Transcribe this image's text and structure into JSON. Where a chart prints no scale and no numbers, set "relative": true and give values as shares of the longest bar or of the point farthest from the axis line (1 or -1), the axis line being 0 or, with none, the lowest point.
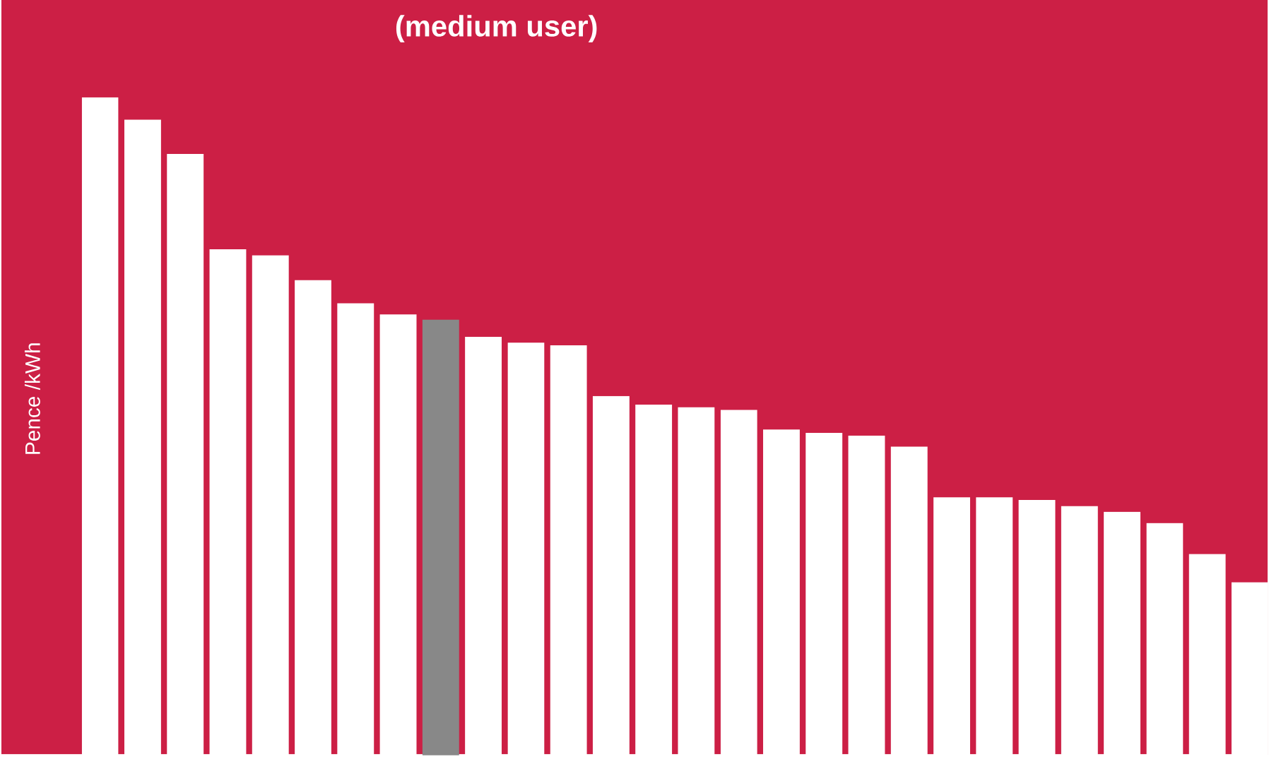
{
  "chart_data": {
    "type": "bar",
    "title": "(medium user)",
    "ylabel": "Pence /kWh",
    "relative": true,
    "categories": [
      null,
      null,
      null,
      null,
      null,
      null,
      null,
      null,
      null,
      null,
      null,
      null,
      null,
      null,
      null,
      null,
      null,
      null,
      null,
      null,
      null,
      null,
      null,
      null,
      null,
      null,
      null,
      null
    ],
    "values": [
      1,
      0.966,
      0.914,
      0.769,
      0.76,
      0.722,
      0.687,
      0.67,
      0.662,
      0.636,
      0.627,
      0.623,
      0.546,
      0.533,
      0.529,
      0.525,
      0.495,
      0.49,
      0.486,
      0.469,
      0.392,
      0.392,
      0.388,
      0.379,
      0.37,
      0.353,
      0.306,
      0.263
    ],
    "colors": [
      "#ffffff",
      "#ffffff",
      "#ffffff",
      "#ffffff",
      "#ffffff",
      "#ffffff",
      "#ffffff",
      "#ffffff",
      "#888888",
      "#ffffff",
      "#ffffff",
      "#ffffff",
      "#ffffff",
      "#ffffff",
      "#ffffff",
      "#ffffff",
      "#ffffff",
      "#ffffff",
      "#ffffff",
      "#ffffff",
      "#ffffff",
      "#ffffff",
      "#ffffff",
      "#ffffff",
      "#ffffff",
      "#ffffff",
      "#ffffff",
      "#ffffff"
    ]
  }
}
